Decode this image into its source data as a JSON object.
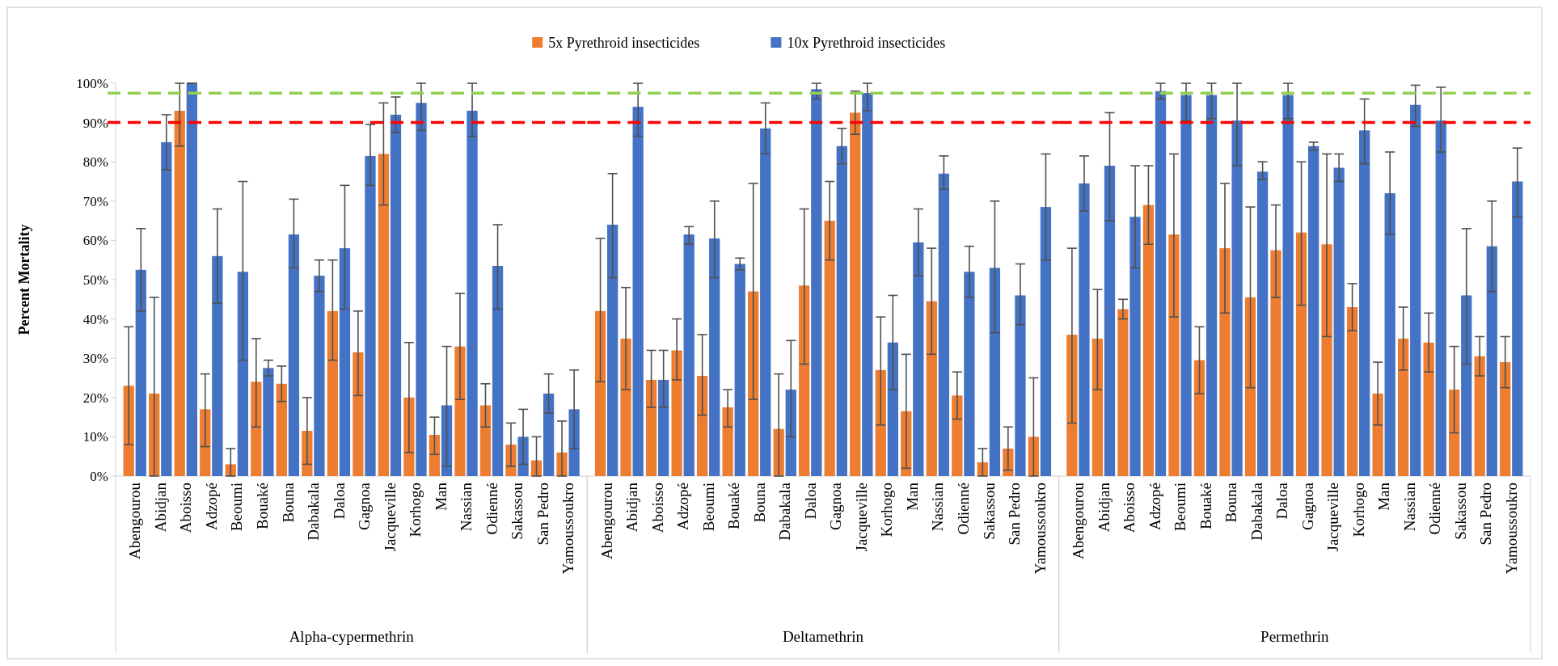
{
  "chart_data": [
    {
      "type": "bar",
      "ylabel": "Percent Mortality",
      "xlabel": "Alpha-cypermethrin",
      "legend": "top",
      "tick_labels": "xy",
      "categories": [
        "Abengourou",
        "Abidjan",
        "Aboisso",
        "Adzopé",
        "Beoumi",
        "Bouaké",
        "Bouna",
        "Dabakala",
        "Daloa",
        "Gagnoa",
        "Jacqueville",
        "Korhogo",
        "Man",
        "Nassian",
        "Odienné",
        "Sakassou",
        "San Pedro",
        "Yamoussoukro"
      ],
      "ylim": [
        0,
        100
      ],
      "yticks": [
        {
          "value": 0,
          "label": "0%"
        },
        {
          "value": 10,
          "label": "10%"
        },
        {
          "value": 20,
          "label": "20%"
        },
        {
          "value": 30,
          "label": "30%"
        },
        {
          "value": 40,
          "label": "40%"
        },
        {
          "value": 50,
          "label": "50%"
        },
        {
          "value": 60,
          "label": "60%"
        },
        {
          "value": 70,
          "label": "70%"
        },
        {
          "value": 80,
          "label": "80%"
        },
        {
          "value": 90,
          "label": "90%"
        },
        {
          "value": 100,
          "label": "100%"
        }
      ],
      "ref_lines": [
        {
          "axis": "y",
          "value": 97.5,
          "color": "#92d050",
          "line_style": "dashed"
        },
        {
          "axis": "y",
          "value": 90,
          "color": "#ff0000",
          "line_style": "dashed"
        }
      ],
      "series": [
        {
          "name": "5x Pyrethroid insecticides",
          "color": "#ed7d31",
          "values": [
            23,
            21,
            93,
            17,
            3,
            24,
            23.5,
            11.5,
            42,
            31.5,
            82,
            20,
            10.5,
            33,
            18,
            8,
            4,
            6
          ],
          "errors": [
            [
              8,
              38
            ],
            [
              0,
              45.5
            ],
            [
              84,
              100
            ],
            [
              7.5,
              26
            ],
            [
              0,
              7
            ],
            [
              12.5,
              35
            ],
            [
              19,
              28
            ],
            [
              3,
              20
            ],
            [
              29.5,
              55
            ],
            [
              20.5,
              42
            ],
            [
              69,
              95
            ],
            [
              6,
              34
            ],
            [
              5.5,
              15
            ],
            [
              19.5,
              46.5
            ],
            [
              12.5,
              23.5
            ],
            [
              2.5,
              13.5
            ],
            [
              0,
              10
            ],
            [
              0,
              14
            ]
          ]
        },
        {
          "name": "10x Pyrethroid insecticides",
          "color": "#4472c4",
          "values": [
            52.5,
            85,
            100,
            56,
            52,
            27.5,
            61.5,
            51,
            58,
            81.5,
            92,
            95,
            18,
            93,
            53.5,
            10,
            21,
            17
          ],
          "errors": [
            [
              42,
              63
            ],
            [
              78,
              92
            ],
            [
              100,
              100
            ],
            [
              44,
              68
            ],
            [
              29.5,
              75
            ],
            [
              25.5,
              29.5
            ],
            [
              53,
              70.5
            ],
            [
              47,
              55
            ],
            [
              42.5,
              74
            ],
            [
              74,
              89.5
            ],
            [
              87.5,
              96.5
            ],
            [
              88,
              100
            ],
            [
              2.5,
              33
            ],
            [
              86.5,
              100
            ],
            [
              42.5,
              64
            ],
            [
              3,
              17
            ],
            [
              16,
              26
            ],
            [
              7,
              27
            ]
          ]
        }
      ]
    },
    {
      "type": "bar",
      "xlabel": "Deltamethrin",
      "tick_labels": "x",
      "categories": [
        "Abengourou",
        "Abidjan",
        "Aboisso",
        "Adzopé",
        "Beoumi",
        "Bouaké",
        "Bouna",
        "Dabakala",
        "Daloa",
        "Gagnoa",
        "Jacqueville",
        "Korhogo",
        "Man",
        "Nassian",
        "Odienné",
        "Sakassou",
        "San Pedro",
        "Yamoussoukro"
      ],
      "ylim": [
        0,
        100
      ],
      "ref_lines": [
        {
          "axis": "y",
          "value": 97.5,
          "color": "#92d050",
          "line_style": "dashed"
        },
        {
          "axis": "y",
          "value": 90,
          "color": "#ff0000",
          "line_style": "dashed"
        }
      ],
      "series": [
        {
          "color": "#ed7d31",
          "values": [
            42,
            35,
            24.5,
            32,
            25.5,
            17.5,
            47,
            12,
            48.5,
            65,
            92.5,
            27,
            16.5,
            44.5,
            20.5,
            3.5,
            7,
            10
          ],
          "errors": [
            [
              24,
              60.5
            ],
            [
              22,
              48
            ],
            [
              17.5,
              32
            ],
            [
              24.5,
              40
            ],
            [
              15.5,
              36
            ],
            [
              12.5,
              22
            ],
            [
              19.5,
              74.5
            ],
            [
              0,
              26
            ],
            [
              28.5,
              68
            ],
            [
              55,
              75
            ],
            [
              87,
              98
            ],
            [
              13,
              40.5
            ],
            [
              2,
              31
            ],
            [
              31,
              58
            ],
            [
              14.5,
              26.5
            ],
            [
              0,
              7
            ],
            [
              1.5,
              12.5
            ],
            [
              0,
              25
            ]
          ]
        },
        {
          "color": "#4472c4",
          "values": [
            64,
            94,
            24.5,
            61.5,
            60.5,
            54,
            88.5,
            22,
            98.5,
            84,
            97.5,
            34,
            59.5,
            77,
            52,
            53,
            46,
            68.5
          ],
          "errors": [
            [
              50.5,
              77
            ],
            [
              86.5,
              100
            ],
            [
              17.5,
              32
            ],
            [
              59,
              63.5
            ],
            [
              50.5,
              70
            ],
            [
              52.5,
              55.5
            ],
            [
              82,
              95
            ],
            [
              10,
              34.5
            ],
            [
              96,
              100
            ],
            [
              79.5,
              88.5
            ],
            [
              93,
              100
            ],
            [
              22,
              46
            ],
            [
              51,
              68
            ],
            [
              73,
              81.5
            ],
            [
              45.5,
              58.5
            ],
            [
              36.5,
              70
            ],
            [
              38.5,
              54
            ],
            [
              55,
              82
            ]
          ]
        }
      ]
    },
    {
      "type": "bar",
      "xlabel": "Permethrin",
      "tick_labels": "x",
      "categories": [
        "Abengourou",
        "Abidjan",
        "Aboisso",
        "Adzopé",
        "Beoumi",
        "Bouaké",
        "Bouna",
        "Dabakala",
        "Daloa",
        "Gagnoa",
        "Jacqueville",
        "Korhogo",
        "Man",
        "Nassian",
        "Odienné",
        "Sakassou",
        "San Pedro",
        "Yamoussoukro"
      ],
      "ylim": [
        0,
        100
      ],
      "ref_lines": [
        {
          "axis": "y",
          "value": 97.5,
          "color": "#92d050",
          "line_style": "dashed"
        },
        {
          "axis": "y",
          "value": 90,
          "color": "#ff0000",
          "line_style": "dashed"
        }
      ],
      "series": [
        {
          "color": "#ed7d31",
          "values": [
            36,
            35,
            42.5,
            69,
            61.5,
            29.5,
            58,
            45.5,
            57.5,
            62,
            59,
            43,
            21,
            35,
            34,
            22,
            30.5,
            29
          ],
          "errors": [
            [
              13.5,
              58
            ],
            [
              22,
              47.5
            ],
            [
              40,
              45
            ],
            [
              59,
              79
            ],
            [
              40.5,
              82
            ],
            [
              21,
              38
            ],
            [
              41.5,
              74.5
            ],
            [
              22.5,
              68.5
            ],
            [
              45.5,
              69
            ],
            [
              43.5,
              80
            ],
            [
              35.5,
              82
            ],
            [
              37,
              49
            ],
            [
              13,
              29
            ],
            [
              27,
              43
            ],
            [
              26.5,
              41.5
            ],
            [
              11,
              33
            ],
            [
              25.5,
              35.5
            ],
            [
              22.5,
              35.5
            ]
          ]
        },
        {
          "color": "#4472c4",
          "values": [
            74.5,
            79,
            66,
            98,
            97,
            97,
            90.5,
            77.5,
            97,
            84,
            78.5,
            88,
            72,
            94.5,
            90.5,
            46,
            58.5,
            75
          ],
          "errors": [
            [
              67.5,
              81.5
            ],
            [
              65,
              92.5
            ],
            [
              53,
              79
            ],
            [
              96,
              100
            ],
            [
              90.5,
              100
            ],
            [
              91,
              100
            ],
            [
              79,
              100
            ],
            [
              75.5,
              80
            ],
            [
              91,
              100
            ],
            [
              83,
              85
            ],
            [
              75,
              82
            ],
            [
              79.5,
              96
            ],
            [
              61.5,
              82.5
            ],
            [
              89,
              99.5
            ],
            [
              82.5,
              99
            ],
            [
              28.5,
              63
            ],
            [
              47,
              70
            ],
            [
              66,
              83.5
            ]
          ]
        }
      ]
    }
  ]
}
